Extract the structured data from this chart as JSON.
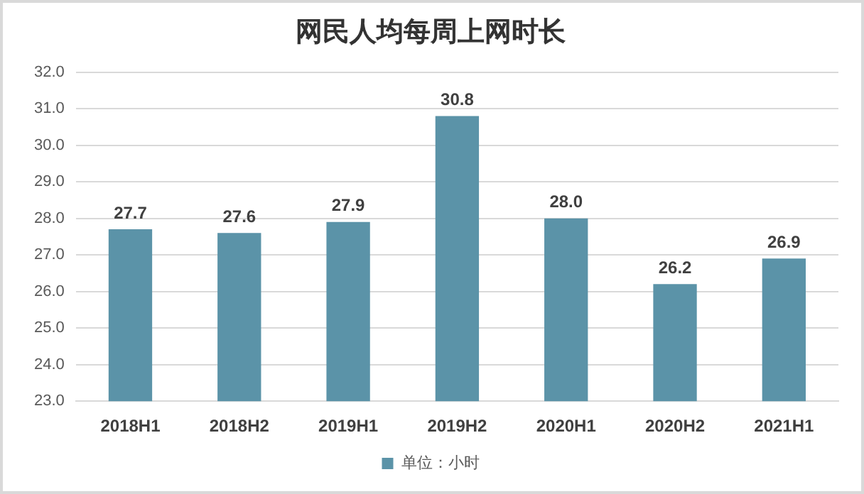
{
  "chart_data": {
    "type": "bar",
    "title": "网民人均每周上网时长",
    "categories": [
      "2018H1",
      "2018H2",
      "2019H1",
      "2019H2",
      "2020H1",
      "2020H2",
      "2021H1"
    ],
    "series": [
      {
        "name": "单位：小时",
        "color": "#5b93a8",
        "values": [
          27.7,
          27.6,
          27.9,
          30.8,
          28.0,
          26.2,
          26.9
        ]
      }
    ],
    "ylim": [
      23,
      32
    ],
    "yticks": [
      {
        "value": 23,
        "label": "23.0"
      },
      {
        "value": 24,
        "label": "24.0"
      },
      {
        "value": 25,
        "label": "25.0"
      },
      {
        "value": 26,
        "label": "26.0"
      },
      {
        "value": 27,
        "label": "27.0"
      },
      {
        "value": 28,
        "label": "28.0"
      },
      {
        "value": 29,
        "label": "29.0"
      },
      {
        "value": 30,
        "label": "30.0"
      },
      {
        "value": 31,
        "label": "31.0"
      },
      {
        "value": 32,
        "label": "32.0"
      }
    ],
    "value_labels": [
      "27.7",
      "27.6",
      "27.9",
      "30.8",
      "28.0",
      "26.2",
      "26.9"
    ],
    "grid": "y",
    "legend": "bottom"
  }
}
